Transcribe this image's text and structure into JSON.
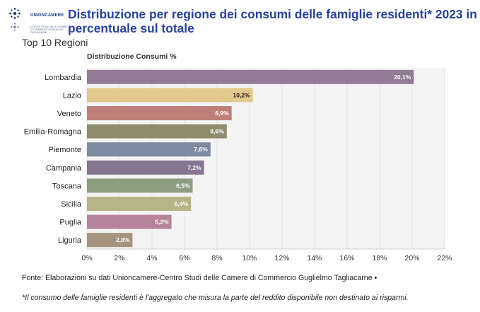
{
  "header": {
    "org_name": "UNIONCAMERE",
    "org_sub": "CENTRO STUDI DELLE CAMERE DI COMMERCIO GUGLIELMO TAGLIACARNE",
    "title": "Distribuzione per regione dei consumi delle famiglie residenti* 2023 in percentuale sul totale",
    "subtitle": "Top 10 Regioni"
  },
  "footer": {
    "source": "Fonte: Elaborazioni su dati Unioncamere-Centro Studi delle Camere di Commercio Guglielmo Tagliacarne •",
    "note": "*Il consumo delle famiglie residenti è l'aggregato che misura la parte del reddito disponibile non destinato ai risparmi."
  },
  "chart_data": {
    "type": "bar",
    "orientation": "horizontal",
    "title": "Distribuzione Consumi %",
    "categories": [
      "Lombardia",
      "Lazio",
      "Veneto",
      "Emilia-Romagna",
      "Piemonte",
      "Campania",
      "Toscana",
      "Sicilia",
      "Puglia",
      "Liguria"
    ],
    "values": [
      20.1,
      10.2,
      8.9,
      8.6,
      7.6,
      7.2,
      6.5,
      6.4,
      5.2,
      2.8
    ],
    "value_labels": [
      "20,1%",
      "10,2%",
      "8,9%",
      "8,6%",
      "7,6%",
      "7,2%",
      "6,5%",
      "6,4%",
      "5,2%",
      "2,8%"
    ],
    "colors": [
      "#937a96",
      "#e3c98d",
      "#bf7f79",
      "#8f8c6c",
      "#7e8aa0",
      "#857691",
      "#8e9c82",
      "#b5b585",
      "#b6849a",
      "#a4947f"
    ],
    "xlim": [
      0,
      22
    ],
    "xticks": [
      0,
      2,
      4,
      6,
      8,
      10,
      12,
      14,
      16,
      18,
      20,
      22
    ],
    "xtick_labels": [
      "0%",
      "2%",
      "4%",
      "6%",
      "8%",
      "10%",
      "12%",
      "14%",
      "16%",
      "18%",
      "20%",
      "22%"
    ],
    "grid": true,
    "legend": "none"
  }
}
